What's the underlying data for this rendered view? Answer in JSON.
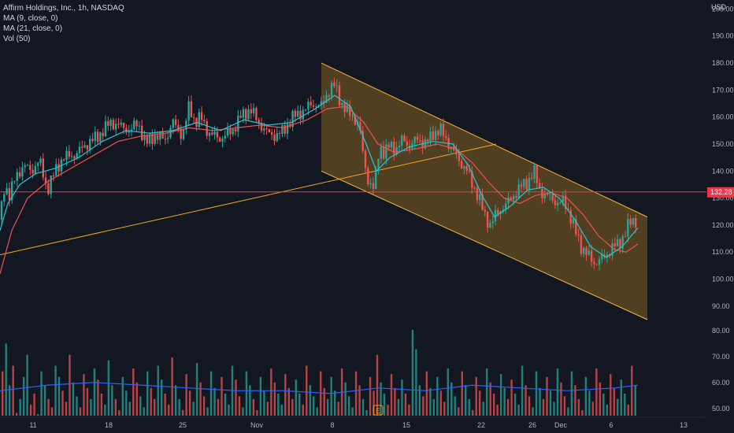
{
  "legend": {
    "title": "Affirm Holdings, Inc., 1h, NASDAQ",
    "ma9": "MA (9, close, 0)",
    "ma21": "MA (21, close, 0)",
    "vol": "Vol (50)"
  },
  "currency": "USD",
  "price_label": "132.28",
  "colors": {
    "background": "#131722",
    "up": "#26a69a",
    "down": "#ef5350",
    "ma9": "#26c6da",
    "ma21": "#ef5350",
    "channel_line": "#f5b940",
    "channel_fill": "#7a5a1f",
    "hline": "#f23645",
    "trendline": "#f5a623",
    "vol_ma": "#2962ff"
  },
  "chart_data": {
    "type": "candlestick",
    "title": "Affirm Holdings, Inc., 1h, NASDAQ",
    "y_ticks": [
      200,
      190,
      180,
      170,
      160,
      150,
      140,
      130,
      120,
      110,
      100,
      90
    ],
    "y_tick_labels": [
      "200.00",
      "190.00",
      "180.00",
      "170.00",
      "160.00",
      "150.00",
      "140.00",
      "130.00",
      "120.00",
      "110.00",
      "100.00",
      "90.00"
    ],
    "vol_tick_labels": [
      "80.00",
      "70.00",
      "60.00",
      "50.00"
    ],
    "x_tick_labels": [
      "11",
      "18",
      "25",
      "Nov",
      "8",
      "15",
      "22",
      "26",
      "Dec",
      "6",
      "13"
    ],
    "ylim": [
      85,
      201
    ],
    "horizontal_line": 132.28,
    "close_path": [
      [
        0,
        122
      ],
      [
        6,
        135
      ],
      [
        12,
        131
      ],
      [
        20,
        138
      ],
      [
        30,
        142
      ],
      [
        40,
        140
      ],
      [
        50,
        144
      ],
      [
        60,
        133
      ],
      [
        70,
        140
      ],
      [
        80,
        145
      ],
      [
        95,
        146
      ],
      [
        110,
        150
      ],
      [
        125,
        153
      ],
      [
        140,
        158
      ],
      [
        150,
        157
      ],
      [
        165,
        155
      ],
      [
        175,
        158
      ],
      [
        185,
        150
      ],
      [
        195,
        153
      ],
      [
        210,
        152
      ],
      [
        220,
        158
      ],
      [
        232,
        153
      ],
      [
        240,
        164
      ],
      [
        248,
        158
      ],
      [
        255,
        160
      ],
      [
        265,
        154
      ],
      [
        280,
        152
      ],
      [
        295,
        155
      ],
      [
        305,
        160
      ],
      [
        318,
        163
      ],
      [
        328,
        158
      ],
      [
        340,
        154
      ],
      [
        350,
        153
      ],
      [
        360,
        155
      ],
      [
        372,
        160
      ],
      [
        384,
        162
      ],
      [
        396,
        165
      ],
      [
        408,
        164
      ],
      [
        418,
        170
      ],
      [
        425,
        172
      ],
      [
        432,
        166
      ],
      [
        440,
        162
      ],
      [
        448,
        160
      ],
      [
        456,
        157
      ],
      [
        462,
        144
      ],
      [
        468,
        136
      ],
      [
        475,
        133
      ],
      [
        482,
        150
      ],
      [
        488,
        146
      ],
      [
        495,
        150
      ],
      [
        503,
        148
      ],
      [
        512,
        152
      ],
      [
        520,
        149
      ],
      [
        530,
        152
      ],
      [
        540,
        150
      ],
      [
        550,
        154
      ],
      [
        560,
        155
      ],
      [
        570,
        150
      ],
      [
        578,
        146
      ],
      [
        585,
        143
      ],
      [
        593,
        140
      ],
      [
        600,
        135
      ],
      [
        608,
        130
      ],
      [
        615,
        124
      ],
      [
        622,
        120
      ],
      [
        630,
        124
      ],
      [
        640,
        127
      ],
      [
        650,
        130
      ],
      [
        660,
        134
      ],
      [
        670,
        136
      ],
      [
        678,
        140
      ],
      [
        685,
        133
      ],
      [
        692,
        131
      ],
      [
        700,
        130
      ],
      [
        708,
        128
      ],
      [
        716,
        129
      ],
      [
        722,
        125
      ],
      [
        730,
        118
      ],
      [
        738,
        112
      ],
      [
        746,
        109
      ],
      [
        754,
        106
      ],
      [
        762,
        107
      ],
      [
        770,
        109
      ],
      [
        778,
        112
      ],
      [
        786,
        113
      ],
      [
        792,
        116
      ],
      [
        798,
        120
      ],
      [
        804,
        122
      ],
      [
        810,
        121
      ]
    ],
    "ma9_path": [
      [
        0,
        118
      ],
      [
        10,
        128
      ],
      [
        25,
        135
      ],
      [
        45,
        139
      ],
      [
        70,
        141
      ],
      [
        100,
        145
      ],
      [
        130,
        151
      ],
      [
        160,
        155
      ],
      [
        190,
        154
      ],
      [
        220,
        155
      ],
      [
        250,
        158
      ],
      [
        280,
        155
      ],
      [
        310,
        159
      ],
      [
        340,
        157
      ],
      [
        370,
        158
      ],
      [
        400,
        163
      ],
      [
        425,
        168
      ],
      [
        445,
        164
      ],
      [
        465,
        150
      ],
      [
        478,
        140
      ],
      [
        495,
        145
      ],
      [
        520,
        149
      ],
      [
        550,
        151
      ],
      [
        575,
        150
      ],
      [
        595,
        142
      ],
      [
        612,
        131
      ],
      [
        628,
        123
      ],
      [
        648,
        127
      ],
      [
        670,
        133
      ],
      [
        690,
        134
      ],
      [
        710,
        130
      ],
      [
        730,
        122
      ],
      [
        750,
        112
      ],
      [
        770,
        108
      ],
      [
        790,
        112
      ],
      [
        810,
        119
      ]
    ],
    "ma21_path": [
      [
        0,
        102
      ],
      [
        15,
        118
      ],
      [
        35,
        130
      ],
      [
        60,
        136
      ],
      [
        90,
        141
      ],
      [
        120,
        146
      ],
      [
        150,
        151
      ],
      [
        180,
        153
      ],
      [
        210,
        154
      ],
      [
        240,
        156
      ],
      [
        270,
        155
      ],
      [
        300,
        156
      ],
      [
        330,
        157
      ],
      [
        360,
        156
      ],
      [
        390,
        159
      ],
      [
        415,
        163
      ],
      [
        440,
        164
      ],
      [
        462,
        158
      ],
      [
        480,
        150
      ],
      [
        500,
        147
      ],
      [
        525,
        148
      ],
      [
        555,
        150
      ],
      [
        580,
        148
      ],
      [
        600,
        143
      ],
      [
        620,
        136
      ],
      [
        640,
        130
      ],
      [
        660,
        128
      ],
      [
        680,
        131
      ],
      [
        700,
        132
      ],
      [
        720,
        130
      ],
      [
        740,
        124
      ],
      [
        760,
        116
      ],
      [
        780,
        111
      ],
      [
        795,
        110
      ],
      [
        810,
        113
      ]
    ],
    "channel": {
      "upper": [
        [
          408,
          180
        ],
        [
          822,
          123
        ]
      ],
      "lower": [
        [
          408,
          140
        ],
        [
          822,
          85
        ]
      ]
    },
    "trendline": [
      [
        0,
        109
      ],
      [
        630,
        150
      ]
    ],
    "volume": [
      60,
      70,
      55,
      62,
      45,
      50,
      58,
      66,
      48,
      52,
      44,
      60,
      55,
      50,
      47,
      62,
      58,
      53,
      49,
      66,
      56,
      51,
      47,
      59,
      54,
      50,
      61,
      57,
      52,
      48,
      64,
      55,
      50,
      46,
      58,
      53,
      49,
      61,
      56,
      51,
      47,
      60,
      54,
      50,
      62,
      57,
      52,
      48,
      65,
      55,
      50,
      46,
      59,
      53,
      49,
      63,
      56,
      51,
      47,
      60,
      54,
      50,
      58,
      52,
      48,
      62,
      57,
      51,
      47,
      60,
      55,
      50,
      46,
      58,
      53,
      49,
      61,
      56,
      52,
      48,
      59,
      54,
      50,
      57,
      52,
      48,
      62,
      55,
      51,
      47,
      60,
      54,
      50,
      58,
      53,
      49,
      61,
      56,
      51,
      47,
      60,
      55,
      50,
      46,
      58,
      53,
      66,
      56,
      52,
      48,
      59,
      54,
      50,
      57,
      52,
      48,
      75,
      68,
      55,
      51,
      60,
      54,
      50,
      58,
      53,
      49,
      61,
      56,
      51,
      47,
      60,
      55,
      50,
      46,
      58,
      53,
      49,
      61,
      56,
      52,
      48,
      59,
      54,
      50,
      57,
      52,
      48,
      62,
      55,
      51,
      47,
      60,
      54,
      50,
      58,
      53,
      49,
      61,
      56,
      51,
      47,
      60,
      55,
      50,
      46,
      58,
      53,
      49,
      61,
      56,
      52,
      48,
      59,
      54,
      50,
      57,
      52,
      48,
      62,
      55
    ],
    "volume_ma": [
      [
        0,
        53
      ],
      [
        60,
        55
      ],
      [
        120,
        56
      ],
      [
        180,
        55
      ],
      [
        240,
        54
      ],
      [
        300,
        53
      ],
      [
        360,
        53
      ],
      [
        420,
        52
      ],
      [
        480,
        54
      ],
      [
        540,
        53
      ],
      [
        600,
        55
      ],
      [
        660,
        54
      ],
      [
        720,
        53
      ],
      [
        780,
        54
      ],
      [
        810,
        55
      ]
    ]
  }
}
